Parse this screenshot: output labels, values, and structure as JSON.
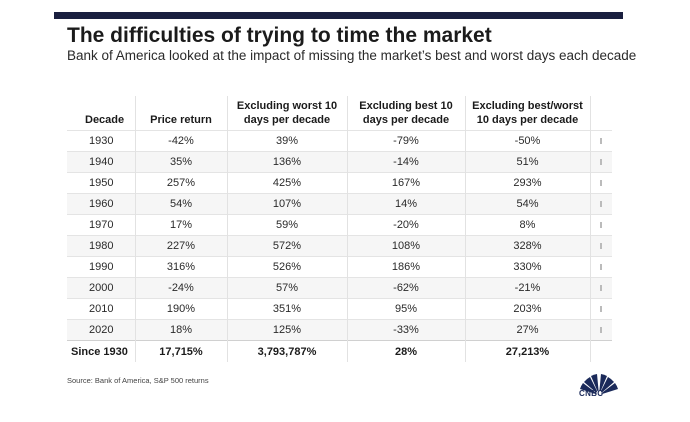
{
  "title": "The difficulties of trying to time the market",
  "subtitle": "Bank of America looked at the impact of missing the market’s best and worst days each decade",
  "chart_data": {
    "type": "table",
    "columns": [
      "Decade",
      "Price return",
      "Excluding worst 10 days per decade",
      "Excluding best 10 days per decade",
      "Excluding best/worst 10 days per decade"
    ],
    "rows": [
      [
        "1930",
        "-42%",
        "39%",
        "-79%",
        "-50%"
      ],
      [
        "1940",
        "35%",
        "136%",
        "-14%",
        "51%"
      ],
      [
        "1950",
        "257%",
        "425%",
        "167%",
        "293%"
      ],
      [
        "1960",
        "54%",
        "107%",
        "14%",
        "54%"
      ],
      [
        "1970",
        "17%",
        "59%",
        "-20%",
        "8%"
      ],
      [
        "1980",
        "227%",
        "572%",
        "108%",
        "328%"
      ],
      [
        "1990",
        "316%",
        "526%",
        "186%",
        "330%"
      ],
      [
        "2000",
        "-24%",
        "57%",
        "-62%",
        "-21%"
      ],
      [
        "2010",
        "190%",
        "351%",
        "95%",
        "203%"
      ],
      [
        "2020",
        "18%",
        "125%",
        "-33%",
        "27%"
      ]
    ],
    "summary": [
      "Since 1930",
      "17,715%",
      "3,793,787%",
      "28%",
      "27,213%"
    ]
  },
  "source": "Source: Bank of America, S&P 500 returns",
  "logo_text": "CNBC",
  "colors": {
    "top_bar": "#1a1f3f",
    "row_alt": "#f6f6f6",
    "logo_navy": "#1b2a5a"
  }
}
